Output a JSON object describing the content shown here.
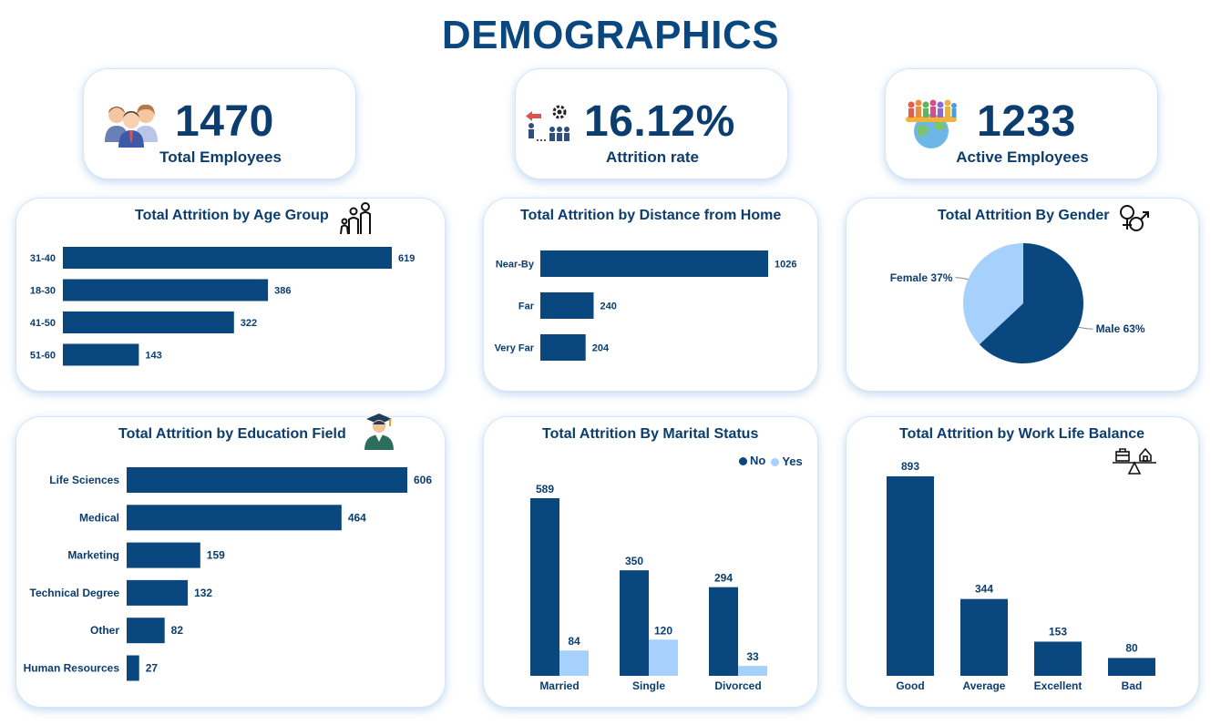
{
  "page_title": "DEMOGRAPHICS",
  "colors": {
    "primary": "#0b477f",
    "secondary": "#a7d1fd"
  },
  "kpis": [
    {
      "value": "1470",
      "label": "Total Employees",
      "icon": "employees-icon"
    },
    {
      "value": "16.12%",
      "label": "Attrition rate",
      "icon": "attrition-icon"
    },
    {
      "value": "1233",
      "label": "Active Employees",
      "icon": "globe-people-icon"
    }
  ],
  "chart_data": [
    {
      "id": "age",
      "type": "bar",
      "orientation": "horizontal",
      "title": "Total Attrition by Age Group",
      "categories": [
        "31-40",
        "18-30",
        "41-50",
        "51-60"
      ],
      "values": [
        619,
        386,
        322,
        143
      ]
    },
    {
      "id": "distance",
      "type": "bar",
      "orientation": "horizontal",
      "title": "Total Attrition by Distance from Home",
      "categories": [
        "Near-By",
        "Far",
        "Very Far"
      ],
      "values": [
        1026,
        240,
        204
      ]
    },
    {
      "id": "gender",
      "type": "pie",
      "title": "Total Attrition By Gender",
      "categories": [
        "Male",
        "Female"
      ],
      "values": [
        63,
        37
      ],
      "labels": [
        "Male 63%",
        "Female 37%"
      ]
    },
    {
      "id": "education",
      "type": "bar",
      "orientation": "horizontal",
      "title": "Total Attrition by Education Field",
      "categories": [
        "Life Sciences",
        "Medical",
        "Marketing",
        "Technical Degree",
        "Other",
        "Human Resources"
      ],
      "values": [
        606,
        464,
        159,
        132,
        82,
        27
      ]
    },
    {
      "id": "marital",
      "type": "bar",
      "orientation": "vertical",
      "title": "Total Attrition By Marital Status",
      "categories": [
        "Married",
        "Single",
        "Divorced"
      ],
      "series": [
        {
          "name": "No",
          "values": [
            589,
            350,
            294
          ]
        },
        {
          "name": "Yes",
          "values": [
            84,
            120,
            33
          ]
        }
      ],
      "legend": "top-right"
    },
    {
      "id": "worklife",
      "type": "bar",
      "orientation": "vertical",
      "title": "Total Attrition by Work Life Balance",
      "categories": [
        "Good",
        "Average",
        "Excellent",
        "Bad"
      ],
      "values": [
        893,
        344,
        153,
        80
      ]
    }
  ]
}
